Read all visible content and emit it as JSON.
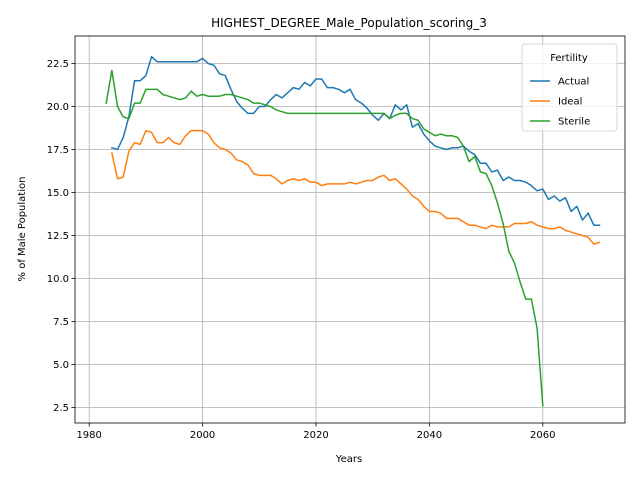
{
  "chart_data": {
    "type": "line",
    "title": "HIGHEST_DEGREE_Male_Population_scoring_3",
    "xlabel": "Years",
    "ylabel": "% of Male Population",
    "xlim": [
      1977.5,
      2074.5
    ],
    "ylim": [
      1.6,
      24.1
    ],
    "x_ticks": [
      1980,
      2000,
      2020,
      2040,
      2060
    ],
    "x_tick_labels": [
      "1980",
      "2000",
      "2020",
      "2040",
      "2060"
    ],
    "y_ticks": [
      2.5,
      5.0,
      7.5,
      10.0,
      12.5,
      15.0,
      17.5,
      20.0,
      22.5
    ],
    "y_tick_labels": [
      "2.5",
      "5.0",
      "7.5",
      "10.0",
      "12.5",
      "15.0",
      "17.5",
      "20.0",
      "22.5"
    ],
    "grid": true,
    "legend": {
      "title": "Fertility",
      "position": "upper-right"
    },
    "series": [
      {
        "name": "Actual",
        "color": "#1f77b4",
        "points": [
          [
            1984,
            17.6
          ],
          [
            1985,
            17.5
          ],
          [
            1986,
            18.2
          ],
          [
            1987,
            19.4
          ],
          [
            1988,
            21.5
          ],
          [
            1989,
            21.5
          ],
          [
            1990,
            21.8
          ],
          [
            1991,
            22.9
          ],
          [
            1992,
            22.6
          ],
          [
            1993,
            22.6
          ],
          [
            1994,
            22.6
          ],
          [
            1995,
            22.6
          ],
          [
            1996,
            22.6
          ],
          [
            1997,
            22.6
          ],
          [
            1998,
            22.6
          ],
          [
            1999,
            22.6
          ],
          [
            2000,
            22.8
          ],
          [
            2001,
            22.5
          ],
          [
            2002,
            22.4
          ],
          [
            2003,
            21.9
          ],
          [
            2004,
            21.8
          ],
          [
            2005,
            21.0
          ],
          [
            2006,
            20.3
          ],
          [
            2007,
            19.9
          ],
          [
            2008,
            19.6
          ],
          [
            2009,
            19.6
          ],
          [
            2010,
            20.0
          ],
          [
            2011,
            20.0
          ],
          [
            2012,
            20.4
          ],
          [
            2013,
            20.7
          ],
          [
            2014,
            20.5
          ],
          [
            2015,
            20.8
          ],
          [
            2016,
            21.1
          ],
          [
            2017,
            21.0
          ],
          [
            2018,
            21.4
          ],
          [
            2019,
            21.2
          ],
          [
            2020,
            21.6
          ],
          [
            2021,
            21.6
          ],
          [
            2022,
            21.1
          ],
          [
            2023,
            21.1
          ],
          [
            2024,
            21.0
          ],
          [
            2025,
            20.8
          ],
          [
            2026,
            21.0
          ],
          [
            2027,
            20.4
          ],
          [
            2028,
            20.2
          ],
          [
            2029,
            19.9
          ],
          [
            2030,
            19.5
          ],
          [
            2031,
            19.2
          ],
          [
            2032,
            19.6
          ],
          [
            2033,
            19.3
          ],
          [
            2034,
            20.1
          ],
          [
            2035,
            19.8
          ],
          [
            2036,
            20.1
          ],
          [
            2037,
            18.8
          ],
          [
            2038,
            19.0
          ],
          [
            2039,
            18.4
          ],
          [
            2040,
            18.0
          ],
          [
            2041,
            17.7
          ],
          [
            2042,
            17.6
          ],
          [
            2043,
            17.5
          ],
          [
            2044,
            17.6
          ],
          [
            2045,
            17.6
          ],
          [
            2046,
            17.7
          ],
          [
            2047,
            17.4
          ],
          [
            2048,
            17.2
          ],
          [
            2049,
            16.7
          ],
          [
            2050,
            16.7
          ],
          [
            2051,
            16.2
          ],
          [
            2052,
            16.3
          ],
          [
            2053,
            15.7
          ],
          [
            2054,
            15.9
          ],
          [
            2055,
            15.7
          ],
          [
            2056,
            15.7
          ],
          [
            2057,
            15.6
          ],
          [
            2058,
            15.4
          ],
          [
            2059,
            15.1
          ],
          [
            2060,
            15.2
          ],
          [
            2061,
            14.6
          ],
          [
            2062,
            14.8
          ],
          [
            2063,
            14.5
          ],
          [
            2064,
            14.7
          ],
          [
            2065,
            13.9
          ],
          [
            2066,
            14.2
          ],
          [
            2067,
            13.4
          ],
          [
            2068,
            13.8
          ],
          [
            2069,
            13.1
          ],
          [
            2070,
            13.1
          ]
        ]
      },
      {
        "name": "Ideal",
        "color": "#ff7f0e",
        "points": [
          [
            1984,
            17.3
          ],
          [
            1985,
            15.8
          ],
          [
            1986,
            15.9
          ],
          [
            1987,
            17.4
          ],
          [
            1988,
            17.9
          ],
          [
            1989,
            17.8
          ],
          [
            1990,
            18.6
          ],
          [
            1991,
            18.5
          ],
          [
            1992,
            17.9
          ],
          [
            1993,
            17.9
          ],
          [
            1994,
            18.2
          ],
          [
            1995,
            17.9
          ],
          [
            1996,
            17.8
          ],
          [
            1997,
            18.3
          ],
          [
            1998,
            18.6
          ],
          [
            1999,
            18.6
          ],
          [
            2000,
            18.6
          ],
          [
            2001,
            18.4
          ],
          [
            2002,
            17.9
          ],
          [
            2003,
            17.6
          ],
          [
            2004,
            17.5
          ],
          [
            2005,
            17.3
          ],
          [
            2006,
            16.9
          ],
          [
            2007,
            16.8
          ],
          [
            2008,
            16.6
          ],
          [
            2009,
            16.1
          ],
          [
            2010,
            16.0
          ],
          [
            2011,
            16.0
          ],
          [
            2012,
            16.0
          ],
          [
            2013,
            15.8
          ],
          [
            2014,
            15.5
          ],
          [
            2015,
            15.7
          ],
          [
            2016,
            15.8
          ],
          [
            2017,
            15.7
          ],
          [
            2018,
            15.8
          ],
          [
            2019,
            15.6
          ],
          [
            2020,
            15.6
          ],
          [
            2021,
            15.4
          ],
          [
            2022,
            15.5
          ],
          [
            2023,
            15.5
          ],
          [
            2024,
            15.5
          ],
          [
            2025,
            15.5
          ],
          [
            2026,
            15.6
          ],
          [
            2027,
            15.5
          ],
          [
            2028,
            15.6
          ],
          [
            2029,
            15.7
          ],
          [
            2030,
            15.7
          ],
          [
            2031,
            15.9
          ],
          [
            2032,
            16.0
          ],
          [
            2033,
            15.7
          ],
          [
            2034,
            15.8
          ],
          [
            2035,
            15.5
          ],
          [
            2036,
            15.2
          ],
          [
            2037,
            14.8
          ],
          [
            2038,
            14.6
          ],
          [
            2039,
            14.2
          ],
          [
            2040,
            13.9
          ],
          [
            2041,
            13.9
          ],
          [
            2042,
            13.8
          ],
          [
            2043,
            13.5
          ],
          [
            2044,
            13.5
          ],
          [
            2045,
            13.5
          ],
          [
            2046,
            13.3
          ],
          [
            2047,
            13.1
          ],
          [
            2048,
            13.1
          ],
          [
            2049,
            13.0
          ],
          [
            2050,
            12.9
          ],
          [
            2051,
            13.1
          ],
          [
            2052,
            13.0
          ],
          [
            2053,
            13.0
          ],
          [
            2054,
            13.0
          ],
          [
            2055,
            13.2
          ],
          [
            2056,
            13.2
          ],
          [
            2057,
            13.2
          ],
          [
            2058,
            13.3
          ],
          [
            2059,
            13.1
          ],
          [
            2060,
            13.0
          ],
          [
            2061,
            12.9
          ],
          [
            2062,
            12.9
          ],
          [
            2063,
            13.0
          ],
          [
            2064,
            12.8
          ],
          [
            2065,
            12.7
          ],
          [
            2066,
            12.6
          ],
          [
            2067,
            12.5
          ],
          [
            2068,
            12.4
          ],
          [
            2069,
            12.0
          ],
          [
            2070,
            12.1
          ]
        ]
      },
      {
        "name": "Sterile",
        "color": "#2ca02c",
        "points": [
          [
            1983,
            20.2
          ],
          [
            1984,
            22.1
          ],
          [
            1985,
            20.0
          ],
          [
            1986,
            19.4
          ],
          [
            1987,
            19.3
          ],
          [
            1988,
            20.2
          ],
          [
            1989,
            20.2
          ],
          [
            1990,
            21.0
          ],
          [
            1991,
            21.0
          ],
          [
            1992,
            21.0
          ],
          [
            1993,
            20.7
          ],
          [
            1994,
            20.6
          ],
          [
            1995,
            20.5
          ],
          [
            1996,
            20.4
          ],
          [
            1997,
            20.5
          ],
          [
            1998,
            20.9
          ],
          [
            1999,
            20.6
          ],
          [
            2000,
            20.7
          ],
          [
            2001,
            20.6
          ],
          [
            2002,
            20.6
          ],
          [
            2003,
            20.6
          ],
          [
            2004,
            20.7
          ],
          [
            2005,
            20.7
          ],
          [
            2006,
            20.6
          ],
          [
            2007,
            20.5
          ],
          [
            2008,
            20.4
          ],
          [
            2009,
            20.2
          ],
          [
            2010,
            20.2
          ],
          [
            2011,
            20.1
          ],
          [
            2012,
            20.0
          ],
          [
            2013,
            19.8
          ],
          [
            2014,
            19.7
          ],
          [
            2015,
            19.6
          ],
          [
            2016,
            19.6
          ],
          [
            2017,
            19.6
          ],
          [
            2018,
            19.6
          ],
          [
            2019,
            19.6
          ],
          [
            2020,
            19.6
          ],
          [
            2021,
            19.6
          ],
          [
            2022,
            19.6
          ],
          [
            2023,
            19.6
          ],
          [
            2024,
            19.6
          ],
          [
            2025,
            19.6
          ],
          [
            2026,
            19.6
          ],
          [
            2027,
            19.6
          ],
          [
            2028,
            19.6
          ],
          [
            2029,
            19.6
          ],
          [
            2030,
            19.6
          ],
          [
            2031,
            19.6
          ],
          [
            2032,
            19.6
          ],
          [
            2033,
            19.3
          ],
          [
            2034,
            19.5
          ],
          [
            2035,
            19.6
          ],
          [
            2036,
            19.6
          ],
          [
            2037,
            19.3
          ],
          [
            2038,
            19.2
          ],
          [
            2039,
            18.7
          ],
          [
            2040,
            18.5
          ],
          [
            2041,
            18.3
          ],
          [
            2042,
            18.4
          ],
          [
            2043,
            18.3
          ],
          [
            2044,
            18.3
          ],
          [
            2045,
            18.2
          ],
          [
            2046,
            17.7
          ],
          [
            2047,
            16.8
          ],
          [
            2048,
            17.1
          ],
          [
            2049,
            16.2
          ],
          [
            2050,
            16.1
          ],
          [
            2051,
            15.4
          ],
          [
            2052,
            14.4
          ],
          [
            2053,
            13.2
          ],
          [
            2054,
            11.6
          ],
          [
            2055,
            10.9
          ],
          [
            2056,
            9.8
          ],
          [
            2057,
            8.8
          ],
          [
            2058,
            8.8
          ],
          [
            2059,
            7.1
          ],
          [
            2060,
            2.6
          ]
        ]
      }
    ]
  }
}
